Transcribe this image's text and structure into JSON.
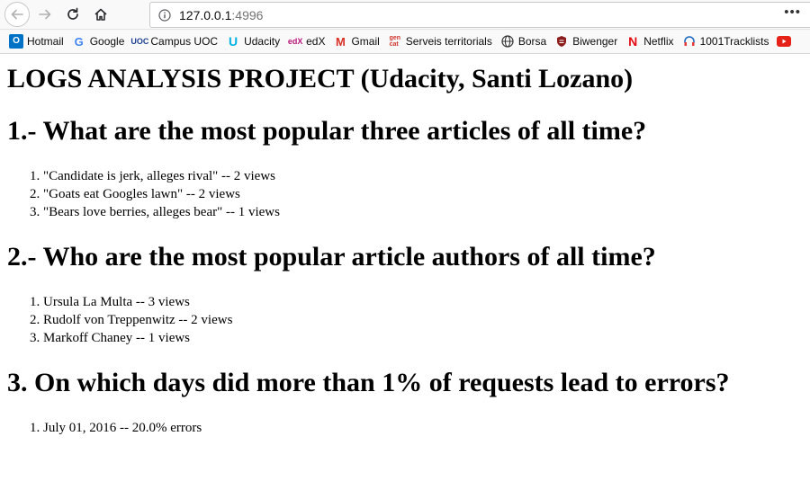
{
  "browser": {
    "url_host": "127.0.0.1",
    "url_port": ":4996",
    "bookmarks": [
      {
        "label": "Hotmail",
        "icon": "outlook-icon",
        "color": "#0072c6"
      },
      {
        "label": "Google",
        "icon": "google-icon",
        "color": "#4285f4"
      },
      {
        "label": "Campus UOC",
        "icon": "uoc-icon",
        "color": "#1e3f8f"
      },
      {
        "label": "Udacity",
        "icon": "udacity-icon",
        "color": "#02b3e4"
      },
      {
        "label": "edX",
        "icon": "edx-icon",
        "color": "#b8157c"
      },
      {
        "label": "Gmail",
        "icon": "gmail-icon",
        "color": "#d93025"
      },
      {
        "label": "Serveis territorials",
        "icon": "gencat-icon",
        "color": "#d0342c"
      },
      {
        "label": "Borsa",
        "icon": "globe-icon",
        "color": "#333333"
      },
      {
        "label": "Biwenger",
        "icon": "biwenger-icon",
        "color": "#8b1c1c"
      },
      {
        "label": "Netflix",
        "icon": "netflix-icon",
        "color": "#e50914"
      },
      {
        "label": "1001Tracklists",
        "icon": "tracklists-icon",
        "color": "#1565c0"
      },
      {
        "label": "",
        "icon": "youtube-icon",
        "color": "#e62117"
      }
    ]
  },
  "page": {
    "title": "LOGS ANALYSIS PROJECT (Udacity, Santi Lozano)",
    "sections": [
      {
        "heading": "1.- What are the most popular three articles of all time?",
        "items": [
          "\"Candidate is jerk, alleges rival\" -- 2 views",
          "\"Goats eat Googles lawn\" -- 2 views",
          "\"Bears love berries, alleges bear\" -- 1 views"
        ]
      },
      {
        "heading": "2.- Who are the most popular article authors of all time?",
        "items": [
          "Ursula La Multa -- 3 views",
          "Rudolf von Treppenwitz -- 2 views",
          "Markoff Chaney -- 1 views"
        ]
      },
      {
        "heading": "3. On which days did more than 1% of requests lead to errors?",
        "items": [
          "July 01, 2016 -- 20.0% errors"
        ]
      }
    ]
  }
}
